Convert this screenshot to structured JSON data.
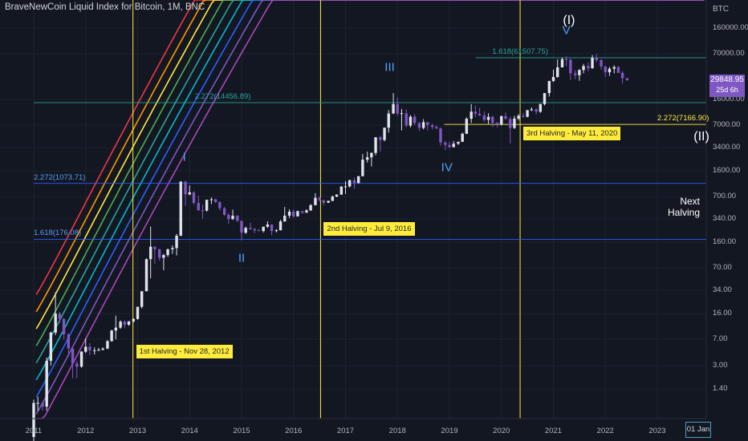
{
  "header": {
    "title": "BraveNewCoin Liquid Index for Bitcoin, 1M, BNC",
    "currency": "BTC",
    "price_badge": "29848.95",
    "price_badge_sub": "25d 6h"
  },
  "chart_data": {
    "type": "candlestick",
    "symbol": "BraveNewCoin Liquid Index for Bitcoin",
    "interval": "1M",
    "y_scale": "log",
    "y_ticks": [
      "160000.00",
      "70000.00",
      "16000.00",
      "7000.00",
      "3400.00",
      "1600.00",
      "700.00",
      "340.00",
      "160.00",
      "70.00",
      "34.00",
      "16.00",
      "7.00",
      "3.00",
      "1.40"
    ],
    "x_ticks": [
      "2011",
      "2012",
      "2013",
      "2014",
      "2015",
      "2016",
      "2017",
      "2018",
      "2019",
      "2020",
      "2021",
      "2022",
      "2023"
    ],
    "x_cursor_label": "01 Jan",
    "last_price": 29848.95,
    "ohlc": [
      [
        2011.0,
        0.3,
        1.0,
        0.25,
        0.9
      ],
      [
        2011.08,
        0.9,
        1.1,
        0.7,
        0.9
      ],
      [
        2011.17,
        0.9,
        0.95,
        0.7,
        0.8
      ],
      [
        2011.25,
        0.8,
        3.9,
        0.7,
        3.5
      ],
      [
        2011.33,
        3.5,
        9.0,
        3.0,
        8.7
      ],
      [
        2011.42,
        8.7,
        32.0,
        8.0,
        16.0
      ],
      [
        2011.5,
        16.0,
        17.0,
        12.0,
        13.5
      ],
      [
        2011.58,
        13.5,
        14.0,
        7.0,
        8.2
      ],
      [
        2011.67,
        8.2,
        8.5,
        4.0,
        5.2
      ],
      [
        2011.75,
        5.2,
        5.3,
        2.0,
        3.2
      ],
      [
        2011.83,
        3.2,
        3.5,
        2.0,
        2.9
      ],
      [
        2011.92,
        2.9,
        4.8,
        2.8,
        4.7
      ],
      [
        2012.0,
        4.7,
        7.3,
        4.5,
        5.5
      ],
      [
        2012.08,
        5.5,
        6.2,
        4.2,
        4.9
      ],
      [
        2012.17,
        4.9,
        5.4,
        4.3,
        4.9
      ],
      [
        2012.25,
        4.9,
        5.3,
        4.8,
        5.0
      ],
      [
        2012.33,
        5.0,
        5.4,
        4.9,
        5.2
      ],
      [
        2012.42,
        5.2,
        6.8,
        5.1,
        6.6
      ],
      [
        2012.5,
        6.6,
        9.5,
        6.5,
        9.3
      ],
      [
        2012.58,
        9.3,
        15.0,
        7.0,
        10.2
      ],
      [
        2012.67,
        10.2,
        12.9,
        9.8,
        12.4
      ],
      [
        2012.75,
        12.4,
        12.9,
        10.0,
        11.2
      ],
      [
        2012.83,
        11.2,
        12.6,
        10.8,
        12.5
      ],
      [
        2012.92,
        12.5,
        13.8,
        12.0,
        13.5
      ],
      [
        2013.0,
        13.5,
        20.0,
        13.2,
        20.0
      ],
      [
        2013.08,
        20.0,
        33.0,
        19.0,
        33.0
      ],
      [
        2013.17,
        33.0,
        95.0,
        33.0,
        93.0
      ],
      [
        2013.25,
        93.0,
        266.0,
        50.0,
        139.0
      ],
      [
        2013.33,
        139.0,
        140.0,
        80.0,
        128.0
      ],
      [
        2013.42,
        128.0,
        130.0,
        88.0,
        97.0
      ],
      [
        2013.5,
        97.0,
        110.0,
        65.0,
        106.0
      ],
      [
        2013.58,
        106.0,
        130.0,
        100.0,
        128.0
      ],
      [
        2013.67,
        128.0,
        145.0,
        110.0,
        133.0
      ],
      [
        2013.75,
        133.0,
        210.0,
        105.0,
        198.0
      ],
      [
        2013.83,
        198.0,
        1150.0,
        195.0,
        1130.0
      ],
      [
        2013.92,
        1130.0,
        1160.0,
        520.0,
        750.0
      ],
      [
        2014.0,
        750.0,
        1000.0,
        730.0,
        800.0
      ],
      [
        2014.08,
        800.0,
        830.0,
        540.0,
        570.0
      ],
      [
        2014.17,
        570.0,
        720.0,
        440.0,
        450.0
      ],
      [
        2014.25,
        450.0,
        540.0,
        340.0,
        445.0
      ],
      [
        2014.33,
        445.0,
        630.0,
        430.0,
        630.0
      ],
      [
        2014.42,
        630.0,
        680.0,
        550.0,
        640.0
      ],
      [
        2014.5,
        640.0,
        650.0,
        570.0,
        585.0
      ],
      [
        2014.58,
        585.0,
        600.0,
        450.0,
        480.0
      ],
      [
        2014.67,
        480.0,
        500.0,
        375.0,
        388.0
      ],
      [
        2014.75,
        388.0,
        410.0,
        290.0,
        338.0
      ],
      [
        2014.83,
        338.0,
        460.0,
        330.0,
        378.0
      ],
      [
        2014.92,
        378.0,
        385.0,
        310.0,
        320.0
      ],
      [
        2015.0,
        320.0,
        320.0,
        170.0,
        218.0
      ],
      [
        2015.08,
        218.0,
        265.0,
        210.0,
        255.0
      ],
      [
        2015.17,
        255.0,
        300.0,
        240.0,
        245.0
      ],
      [
        2015.25,
        245.0,
        255.0,
        215.0,
        236.0
      ],
      [
        2015.33,
        236.0,
        245.0,
        228.0,
        230.0
      ],
      [
        2015.42,
        230.0,
        265.0,
        220.0,
        264.0
      ],
      [
        2015.5,
        264.0,
        315.0,
        255.0,
        284.0
      ],
      [
        2015.58,
        284.0,
        285.0,
        200.0,
        230.0
      ],
      [
        2015.67,
        230.0,
        245.0,
        220.0,
        236.0
      ],
      [
        2015.75,
        236.0,
        330.0,
        235.0,
        314.0
      ],
      [
        2015.83,
        314.0,
        500.0,
        310.0,
        378.0
      ],
      [
        2015.92,
        378.0,
        465.0,
        350.0,
        430.0
      ],
      [
        2016.0,
        430.0,
        460.0,
        350.0,
        370.0
      ],
      [
        2016.08,
        370.0,
        445.0,
        365.0,
        437.0
      ],
      [
        2016.17,
        437.0,
        440.0,
        400.0,
        416.0
      ],
      [
        2016.25,
        416.0,
        465.0,
        415.0,
        448.0
      ],
      [
        2016.33,
        448.0,
        550.0,
        440.0,
        530.0
      ],
      [
        2016.42,
        530.0,
        780.0,
        525.0,
        672.0
      ],
      [
        2016.5,
        672.0,
        700.0,
        600.0,
        624.0
      ],
      [
        2016.58,
        624.0,
        625.0,
        530.0,
        573.0
      ],
      [
        2016.67,
        573.0,
        615.0,
        570.0,
        608.0
      ],
      [
        2016.75,
        608.0,
        720.0,
        605.0,
        700.0
      ],
      [
        2016.83,
        700.0,
        750.0,
        685.0,
        745.0
      ],
      [
        2016.92,
        745.0,
        980.0,
        740.0,
        965.0
      ],
      [
        2017.0,
        965.0,
        1150.0,
        760.0,
        970.0
      ],
      [
        2017.08,
        970.0,
        1200.0,
        940.0,
        1190.0
      ],
      [
        2017.17,
        1190.0,
        1290.0,
        900.0,
        1080.0
      ],
      [
        2017.25,
        1080.0,
        1350.0,
        1070.0,
        1350.0
      ],
      [
        2017.33,
        1350.0,
        2760.0,
        1340.0,
        2300.0
      ],
      [
        2017.42,
        2300.0,
        2980.0,
        2100.0,
        2480.0
      ],
      [
        2017.5,
        2480.0,
        2900.0,
        1850.0,
        2860.0
      ],
      [
        2017.58,
        2860.0,
        4770.0,
        2650.0,
        4730.0
      ],
      [
        2017.67,
        4730.0,
        4980.0,
        2970.0,
        4340.0
      ],
      [
        2017.75,
        4340.0,
        6470.0,
        4150.0,
        6450.0
      ],
      [
        2017.83,
        6450.0,
        11400.0,
        5500.0,
        10200.0
      ],
      [
        2017.92,
        10200.0,
        19700.0,
        10000.0,
        13800.0
      ],
      [
        2018.0,
        13800.0,
        17200.0,
        9400.0,
        10200.0
      ],
      [
        2018.08,
        10200.0,
        11800.0,
        5900.0,
        10300.0
      ],
      [
        2018.17,
        10300.0,
        11700.0,
        6500.0,
        6900.0
      ],
      [
        2018.25,
        6900.0,
        9700.0,
        6500.0,
        9200.0
      ],
      [
        2018.33,
        9200.0,
        9950.0,
        7000.0,
        7500.0
      ],
      [
        2018.42,
        7500.0,
        7750.0,
        5800.0,
        6400.0
      ],
      [
        2018.5,
        6400.0,
        8500.0,
        6100.0,
        7700.0
      ],
      [
        2018.58,
        7700.0,
        7800.0,
        5900.0,
        7000.0
      ],
      [
        2018.67,
        7000.0,
        7400.0,
        6100.0,
        6600.0
      ],
      [
        2018.75,
        6600.0,
        7000.0,
        6200.0,
        6300.0
      ],
      [
        2018.83,
        6300.0,
        6500.0,
        3600.0,
        4000.0
      ],
      [
        2018.92,
        4000.0,
        4200.0,
        3150.0,
        3700.0
      ],
      [
        2019.0,
        3700.0,
        4100.0,
        3350.0,
        3450.0
      ],
      [
        2019.08,
        3450.0,
        4200.0,
        3400.0,
        3850.0
      ],
      [
        2019.17,
        3850.0,
        4100.0,
        3700.0,
        4100.0
      ],
      [
        2019.25,
        4100.0,
        5500.0,
        4050.0,
        5300.0
      ],
      [
        2019.33,
        5300.0,
        9000.0,
        5250.0,
        8600.0
      ],
      [
        2019.42,
        8600.0,
        13800.0,
        7500.0,
        10800.0
      ],
      [
        2019.5,
        10800.0,
        13200.0,
        9100.0,
        10100.0
      ],
      [
        2019.58,
        10100.0,
        12300.0,
        9400.0,
        9600.0
      ],
      [
        2019.67,
        9600.0,
        10900.0,
        7800.0,
        8300.0
      ],
      [
        2019.75,
        8300.0,
        10300.0,
        7300.0,
        9150.0
      ],
      [
        2019.83,
        9150.0,
        9500.0,
        6600.0,
        7550.0
      ],
      [
        2019.92,
        7550.0,
        7750.0,
        6500.0,
        7200.0
      ],
      [
        2020.0,
        7200.0,
        9550.0,
        6900.0,
        9350.0
      ],
      [
        2020.08,
        9350.0,
        10500.0,
        8500.0,
        8550.0
      ],
      [
        2020.17,
        8550.0,
        9200.0,
        3900.0,
        6400.0
      ],
      [
        2020.25,
        6400.0,
        9450.0,
        6200.0,
        8650.0
      ],
      [
        2020.33,
        8650.0,
        10000.0,
        8150.0,
        9450.0
      ],
      [
        2020.42,
        9450.0,
        10400.0,
        8950.0,
        9150.0
      ],
      [
        2020.5,
        9150.0,
        11400.0,
        9000.0,
        11350.0
      ],
      [
        2020.58,
        11350.0,
        12450.0,
        11000.0,
        11650.0
      ],
      [
        2020.67,
        11650.0,
        12050.0,
        9850.0,
        10800.0
      ],
      [
        2020.75,
        10800.0,
        14000.0,
        10400.0,
        13800.0
      ],
      [
        2020.83,
        13800.0,
        19500.0,
        13250.0,
        19700.0
      ],
      [
        2020.92,
        19700.0,
        29300.0,
        17600.0,
        29000.0
      ],
      [
        2021.0,
        29000.0,
        41950.0,
        28200.0,
        33100.0
      ],
      [
        2021.08,
        33100.0,
        58350.0,
        32300.0,
        45200.0
      ],
      [
        2021.17,
        45200.0,
        61800.0,
        44950.0,
        58800.0
      ],
      [
        2021.25,
        58800.0,
        64850.0,
        47000.0,
        57700.0
      ],
      [
        2021.33,
        57700.0,
        59600.0,
        30000.0,
        37300.0
      ],
      [
        2021.42,
        37300.0,
        41300.0,
        31000.0,
        35000.0
      ],
      [
        2021.5,
        35000.0,
        42400.0,
        29300.0,
        41500.0
      ],
      [
        2021.58,
        41500.0,
        50500.0,
        37300.0,
        47100.0
      ],
      [
        2021.67,
        47100.0,
        52900.0,
        39600.0,
        43800.0
      ],
      [
        2021.75,
        43800.0,
        67000.0,
        43300.0,
        61300.0
      ],
      [
        2021.83,
        61300.0,
        69000.0,
        53300.0,
        57000.0
      ],
      [
        2021.92,
        57000.0,
        59100.0,
        42000.0,
        46300.0
      ],
      [
        2022.0,
        46300.0,
        47900.0,
        33000.0,
        38500.0
      ],
      [
        2022.08,
        38500.0,
        45800.0,
        34300.0,
        43200.0
      ],
      [
        2022.17,
        43200.0,
        48200.0,
        37200.0,
        45500.0
      ],
      [
        2022.25,
        45500.0,
        47400.0,
        37700.0,
        37700.0
      ],
      [
        2022.33,
        37700.0,
        40000.0,
        26700.0,
        31800.0
      ],
      [
        2022.42,
        31800.0,
        32000.0,
        29300.0,
        29849.0
      ]
    ],
    "rainbow_bands": [
      {
        "color": "#f23645"
      },
      {
        "color": "#ff9800"
      },
      {
        "color": "#ffeb3b"
      },
      {
        "color": "#4caf50"
      },
      {
        "color": "#26a69a"
      },
      {
        "color": "#00bcd4"
      },
      {
        "color": "#2962ff"
      },
      {
        "color": "#7e57c2"
      },
      {
        "color": "#ab47bc"
      }
    ],
    "halvings": [
      {
        "label": "1st Halving - Nov 28, 2012",
        "date": 2012.91
      },
      {
        "label": "2nd Halving - Jul 9, 2016",
        "date": 2016.52
      },
      {
        "label": "3rd Halving - May 11, 2020",
        "date": 2020.36
      }
    ],
    "fib_levels": [
      {
        "label": "1.618(61507.75)",
        "value": 61507.75,
        "color": "#26a69a"
      },
      {
        "label": "2.272(14456.89)",
        "value": 14456.89,
        "color": "#26a69a"
      },
      {
        "label": "2.272(7166.90)",
        "value": 7166.9,
        "color": "#ffeb3b"
      },
      {
        "label": "2.272(1073.71)",
        "value": 1073.71,
        "color": "#2962ff"
      },
      {
        "label": "1.618(176.08)",
        "value": 176.08,
        "color": "#2962ff"
      }
    ],
    "wave_labels": [
      {
        "text": "I",
        "date": 2013.9,
        "value": 2500
      },
      {
        "text": "II",
        "date": 2015.0,
        "value": 95
      },
      {
        "text": "III",
        "date": 2017.85,
        "value": 45000
      },
      {
        "text": "IV",
        "date": 2018.95,
        "value": 1800
      },
      {
        "text": "V",
        "date": 2021.25,
        "value": 150000
      },
      {
        "text": "(I)",
        "date": 2021.3,
        "value": 200000
      },
      {
        "text": "(II)",
        "date": 2023.85,
        "value": 4700
      }
    ],
    "next_halving_label": [
      "Next",
      "Halving"
    ],
    "y_scale_reference": {
      "dates": [
        2011.0,
        2022.42
      ],
      "prices": [
        0.3,
        29849.0
      ]
    },
    "fib_label_dates": [
      2020.9,
      2014.1,
      2023.0,
      2011.0,
      2011.0
    ],
    "fib_line_starts": [
      2019.5,
      2011.0,
      2018.9,
      2011.0,
      2011.0
    ]
  }
}
